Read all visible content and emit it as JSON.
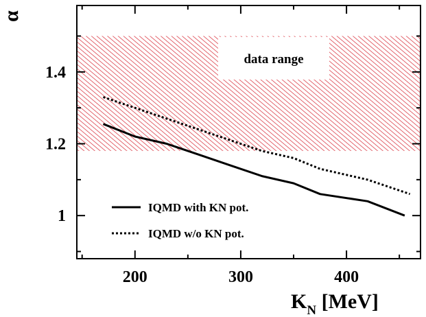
{
  "chart_data": {
    "type": "line",
    "xlabel": "K",
    "xlabel_sub": "N",
    "xlabel_unit": " [MeV]",
    "ylabel": "α",
    "xlim": [
      145,
      470
    ],
    "ylim": [
      0.88,
      1.585
    ],
    "x_ticks": [
      200,
      300,
      400
    ],
    "x_tick_labels": [
      "200",
      "300",
      "400"
    ],
    "y_ticks": [
      1.0,
      1.2,
      1.4
    ],
    "y_tick_labels": [
      "1",
      "1.2",
      "1.4"
    ],
    "grid": false,
    "band": {
      "label": "data range",
      "y_range": [
        1.18,
        1.5
      ],
      "color": "#d9343f",
      "style": "hatched"
    },
    "legend_position": "bottom-left",
    "series": [
      {
        "name": "IQMD with KN pot.",
        "style": "solid",
        "color": "#000000",
        "x": [
          170,
          200,
          230,
          260,
          290,
          320,
          350,
          375,
          420,
          455
        ],
        "y": [
          1.255,
          1.22,
          1.2,
          1.17,
          1.14,
          1.11,
          1.09,
          1.06,
          1.04,
          1.0
        ]
      },
      {
        "name": "IQMD w/o KN pot.",
        "style": "dotted",
        "color": "#000000",
        "x": [
          170,
          200,
          230,
          260,
          290,
          320,
          350,
          375,
          420,
          460
        ],
        "y": [
          1.33,
          1.3,
          1.27,
          1.24,
          1.21,
          1.18,
          1.16,
          1.13,
          1.1,
          1.06
        ]
      }
    ]
  }
}
